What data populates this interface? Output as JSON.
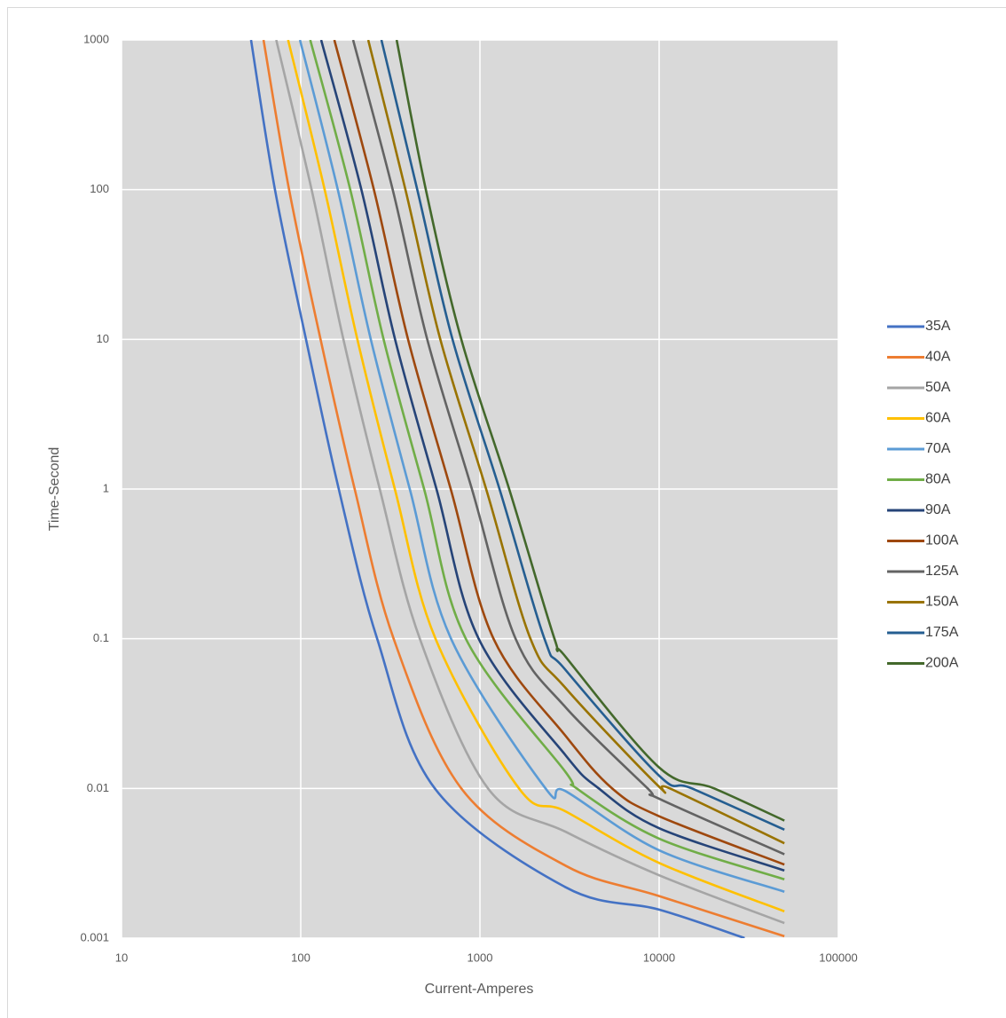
{
  "chart_data": {
    "type": "line",
    "xlabel": "Current-Amperes",
    "ylabel": "Time-Second",
    "xscale": "log",
    "yscale": "log",
    "xlim": [
      10,
      100000
    ],
    "ylim": [
      0.001,
      1000
    ],
    "xticks": [
      10,
      100,
      1000,
      10000,
      100000
    ],
    "yticks": [
      0.001,
      0.01,
      0.1,
      1,
      10,
      100,
      1000
    ],
    "grid": true,
    "legend": "right",
    "series": [
      {
        "name": "35A",
        "color": "#4472C4",
        "x": [
          52.8,
          71.8,
          107,
          163,
          267,
          560,
          3000,
          10000,
          30000
        ],
        "values": [
          1000,
          100,
          10,
          1,
          0.1,
          0.01,
          0.00219,
          0.00155,
          0.001
        ]
      },
      {
        "name": "40A",
        "color": "#ED7D31",
        "x": [
          62,
          86.1,
          129,
          200,
          330,
          787,
          3000,
          10000,
          50000
        ],
        "values": [
          1000,
          100,
          10,
          1,
          0.1,
          0.01,
          0.00305,
          0.00191,
          0.00103
        ]
      },
      {
        "name": "50A",
        "color": "#A5A5A5",
        "x": [
          73,
          115,
          173,
          276,
          462,
          1109,
          3000,
          10000,
          50000
        ],
        "values": [
          1000,
          100,
          10,
          1,
          0.1,
          0.01,
          0.00514,
          0.00263,
          0.00126
        ]
      },
      {
        "name": "60A",
        "color": "#FFC000",
        "x": [
          85,
          136,
          207,
          335,
          565,
          1652,
          3000,
          10000,
          50000
        ],
        "values": [
          1000,
          100,
          10,
          1,
          0.1,
          0.01,
          0.00703,
          0.00318,
          0.00151
        ]
      },
      {
        "name": "70A",
        "color": "#5B9BD5",
        "x": [
          99,
          161,
          246,
          406,
          690,
          2323,
          3000,
          10000,
          50000
        ],
        "values": [
          1000,
          100,
          10,
          1,
          0.1,
          0.01,
          0.0096,
          0.00386,
          0.00204
        ]
      },
      {
        "name": "80A",
        "color": "#70AD47",
        "x": [
          113,
          189,
          290,
          488,
          834,
          3000,
          3467,
          10000,
          50000
        ],
        "values": [
          1000,
          100,
          10,
          1,
          0.1,
          0.0129,
          0.01,
          0.00462,
          0.00247
        ]
      },
      {
        "name": "90A",
        "color": "#264478",
        "x": [
          130,
          218,
          336,
          572,
          984,
          3000,
          4603,
          10000,
          50000
        ],
        "values": [
          1000,
          100,
          10,
          1,
          0.1,
          0.0167,
          0.01,
          0.00542,
          0.00283
        ]
      },
      {
        "name": "100A",
        "color": "#9E480E",
        "x": [
          154,
          256,
          397,
          687,
          1191,
          3000,
          5470,
          10000,
          50000
        ],
        "values": [
          1000,
          100,
          10,
          1,
          0.1,
          0.0225,
          0.01,
          0.00652,
          0.0031
        ]
      },
      {
        "name": "125A",
        "color": "#636363",
        "x": [
          196,
          326,
          508,
          902,
          1581,
          3000,
          8630,
          10000,
          50000
        ],
        "values": [
          1000,
          100,
          10,
          1,
          0.1,
          0.0349,
          0.01,
          0.00853,
          0.00363
        ]
      },
      {
        "name": "150A",
        "color": "#997300",
        "x": [
          238,
          384,
          601,
          1083,
          1914,
          3000,
          10000,
          11480,
          50000
        ],
        "values": [
          1000,
          100,
          10,
          1,
          0.1,
          0.047,
          0.01026,
          0.01,
          0.0043
        ]
      },
      {
        "name": "175A",
        "color": "#255E91",
        "x": [
          282,
          447,
          703,
          1286,
          2291,
          3000,
          10000,
          15240,
          50000
        ],
        "values": [
          1000,
          100,
          10,
          1,
          0.1,
          0.062,
          0.01216,
          0.01,
          0.0053
        ]
      },
      {
        "name": "200A",
        "color": "#43682B",
        "x": [
          343,
          499,
          787,
          1456,
          2606,
          3000,
          10000,
          20280,
          50000
        ],
        "values": [
          1000,
          100,
          10,
          1,
          0.1,
          0.076,
          0.0138,
          0.01,
          0.0061
        ]
      }
    ]
  }
}
